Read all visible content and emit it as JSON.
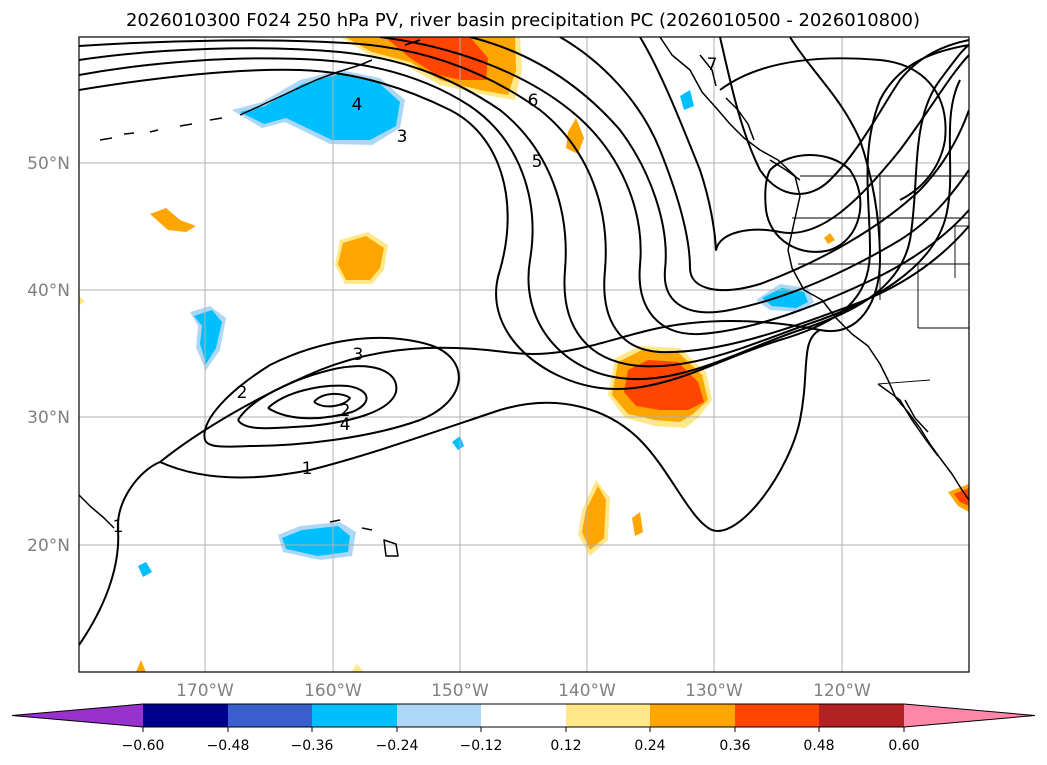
{
  "title": "2026010300 F024 250 hPa PV, river basin precipitation PC (2026010500 - 2026010800)",
  "latitude_labels": [
    "50°N",
    "40°N",
    "30°N",
    "20°N"
  ],
  "longitude_labels": [
    "170°W",
    "160°W",
    "150°W",
    "140°W",
    "130°W",
    "120°W"
  ],
  "contour_labels": [
    "1",
    "2",
    "3",
    "4",
    "5",
    "6",
    "7",
    "2",
    "3",
    "4",
    "1"
  ],
  "colorbar": {
    "tick_labels": [
      "−0.60",
      "−0.48",
      "−0.36",
      "−0.24",
      "−0.12",
      "0.12",
      "0.24",
      "0.36",
      "0.48",
      "0.60"
    ],
    "colors": [
      "#9932cc",
      "#00008b",
      "#3a5fcd",
      "#00bfff",
      "#add8f5",
      "#ffffff",
      "#ffe88a",
      "#ffa500",
      "#ff4500",
      "#b22222",
      "#ff88aa"
    ]
  },
  "colors": {
    "pos_light": "#ffe88a",
    "pos_mid": "#ffa500",
    "pos_strong": "#ff4500",
    "neg_light": "#add8f5",
    "neg_mid": "#00bfff"
  }
}
